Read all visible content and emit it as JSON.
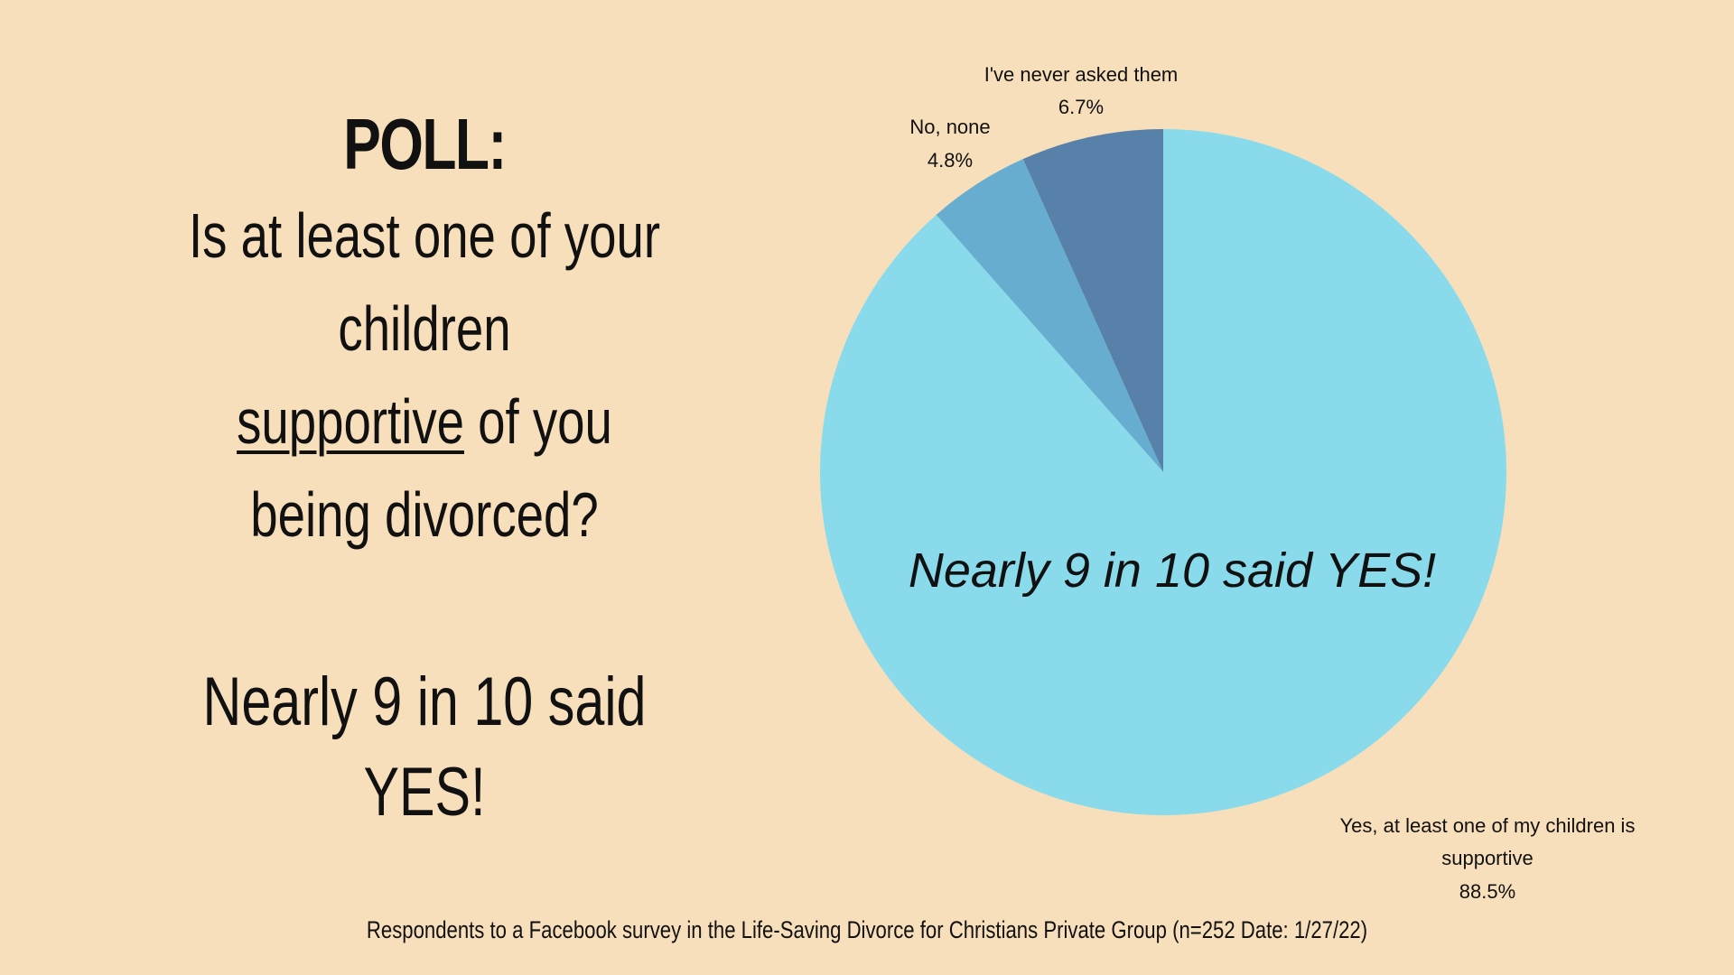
{
  "heading": {
    "poll_label": "POLL:",
    "question_part1": "Is at least one of your children",
    "question_emphasis": "supportive",
    "question_part2": "of you being divorced?",
    "answer_headline": "Nearly 9 in 10 said YES!"
  },
  "chart_data": {
    "type": "pie",
    "title": "",
    "center_annotation": "Nearly 9 in 10 said YES!",
    "start_angle": "12 o'clock",
    "direction": "counterclockwise",
    "slices": [
      {
        "label": "I've never asked them",
        "value_label": "6.7%",
        "value": 6.7,
        "color": "#5881aa"
      },
      {
        "label": "No, none",
        "value_label": "4.8%",
        "value": 4.8,
        "color": "#67adcf"
      },
      {
        "label_line1": "Yes, at least one of my children is",
        "label_line2": "supportive",
        "value_label": "88.5%",
        "value": 88.5,
        "color": "#89dbec"
      }
    ]
  },
  "footer": {
    "note": "Respondents to a Facebook survey in the Life-Saving Divorce for Christians Private Group  (n=252  Date: 1/27/22)"
  },
  "colors": {
    "background": "#f8dfbb",
    "text": "#111111"
  }
}
